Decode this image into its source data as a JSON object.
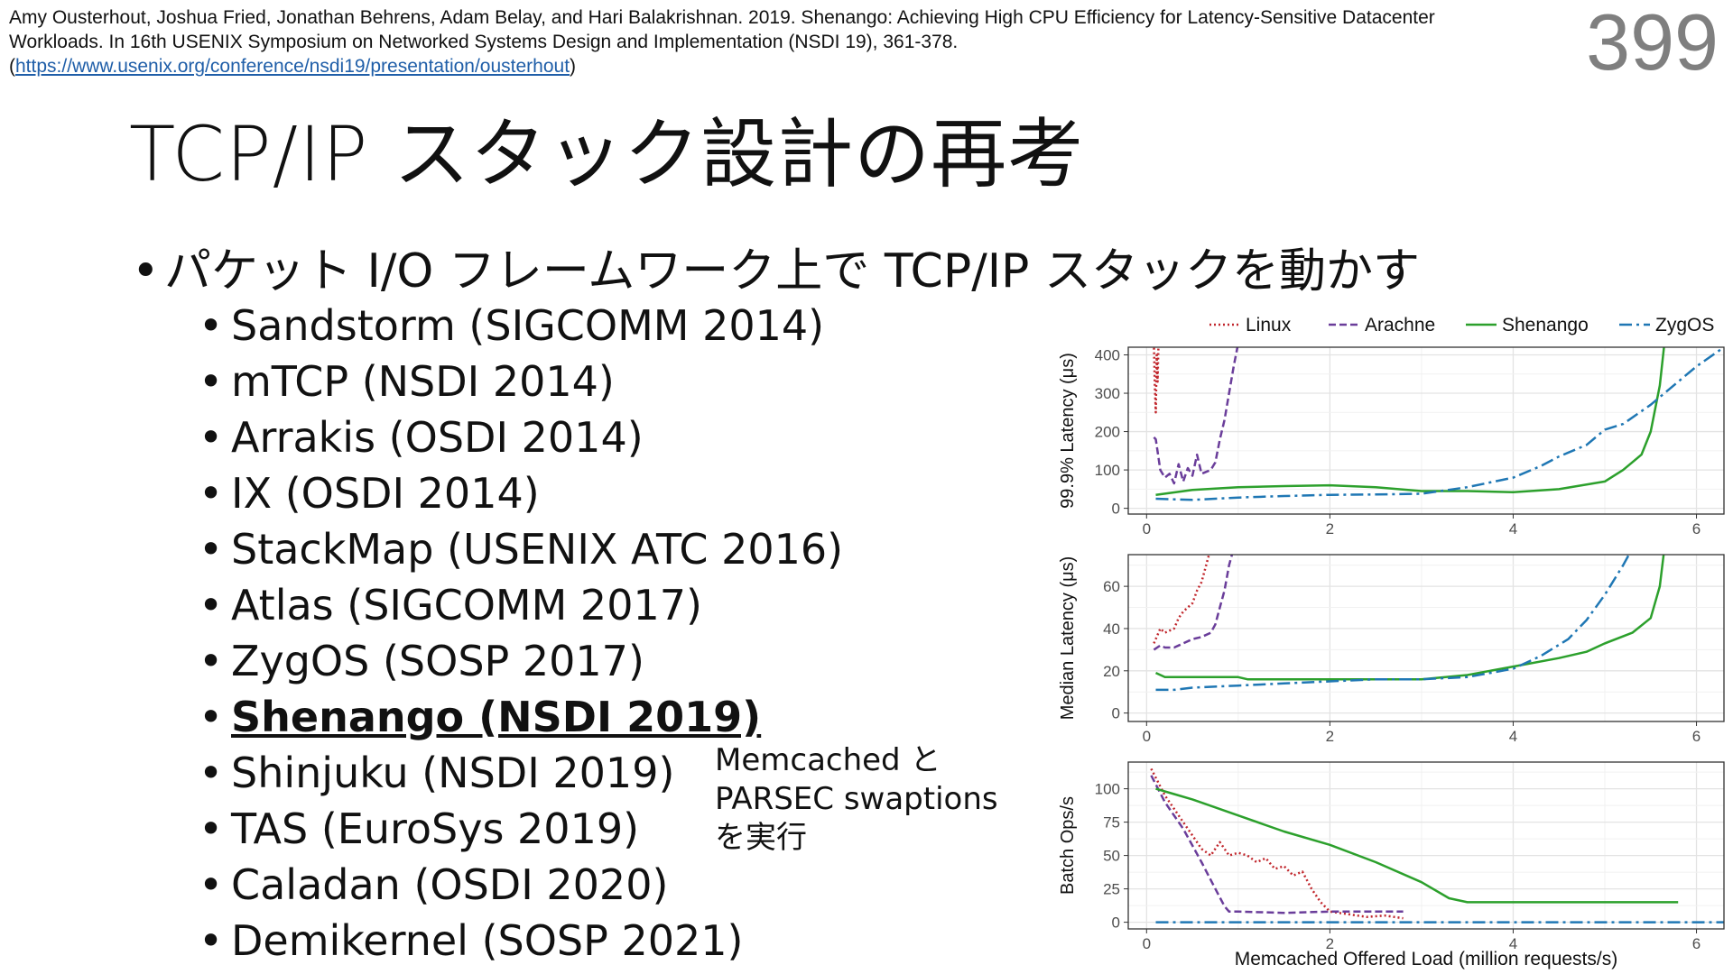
{
  "citation": {
    "text": "Amy Ousterhout, Joshua Fried, Jonathan Behrens, Adam Belay, and Hari Balakrishnan. 2019. Shenango: Achieving High CPU Efficiency for Latency-Sensitive Datacenter Workloads. In 16th USENIX Symposium on Networked Systems Design and Implementation (NSDI 19), 361-378.(",
    "link": "https://www.usenix.org/conference/nsdi19/presentation/ousterhout",
    "close": ")"
  },
  "page_number": "399",
  "title": "TCP/IP スタック設計の再考",
  "main_bullet": "パケット I/O フレームワーク上で TCP/IP スタックを動かす",
  "bullet_symbol": "•",
  "sub_items": [
    {
      "text": "Sandstorm (SIGCOMM 2014)",
      "highlight": false
    },
    {
      "text": "mTCP (NSDI 2014)",
      "highlight": false
    },
    {
      "text": "Arrakis (OSDI 2014)",
      "highlight": false
    },
    {
      "text": "IX (OSDI 2014)",
      "highlight": false
    },
    {
      "text": "StackMap (USENIX ATC 2016)",
      "highlight": false
    },
    {
      "text": "Atlas (SIGCOMM 2017)",
      "highlight": false
    },
    {
      "text": "ZygOS (SOSP 2017)",
      "highlight": false
    },
    {
      "text": "Shenango (NSDI 2019)",
      "highlight": true
    },
    {
      "text": "Shinjuku (NSDI 2019)",
      "highlight": false
    },
    {
      "text": "TAS (EuroSys 2019)",
      "highlight": false
    },
    {
      "text": "Caladan (OSDI 2020)",
      "highlight": false
    },
    {
      "text": "Demikernel (SOSP 2021)",
      "highlight": false
    }
  ],
  "note_lines": [
    "Memcached と",
    "PARSEC swaptions",
    "を実行"
  ],
  "chart_data": {
    "type": "line",
    "xlabel": "Memcached Offered Load (million requests/s)",
    "xlim": [
      -0.2,
      6.3
    ],
    "xticks": [
      0,
      2,
      4,
      6
    ],
    "legend": {
      "position": "top",
      "entries": [
        {
          "name": "Linux",
          "color": "#c1272d",
          "style": "dotted"
        },
        {
          "name": "Arachne",
          "color": "#6a3d9a",
          "style": "dashed"
        },
        {
          "name": "Shenango",
          "color": "#2ca02c",
          "style": "solid"
        },
        {
          "name": "ZygOS",
          "color": "#1f77b4",
          "style": "longdash"
        }
      ]
    },
    "grid": true,
    "panels": [
      {
        "ylabel": "99.9% Latency (μs)",
        "ylim": [
          -15,
          420
        ],
        "yticks": [
          0,
          100,
          200,
          300,
          400
        ],
        "series": [
          {
            "name": "Linux",
            "x": [
              0.08,
              0.09,
              0.1,
              0.11,
              0.12,
              0.13
            ],
            "y": [
              430,
              320,
              250,
              400,
              330,
              430
            ]
          },
          {
            "name": "Arachne",
            "x": [
              0.08,
              0.1,
              0.15,
              0.2,
              0.25,
              0.3,
              0.35,
              0.4,
              0.45,
              0.5,
              0.55,
              0.6,
              0.65,
              0.7,
              0.75,
              0.8,
              0.85,
              0.9,
              0.95,
              1.0
            ],
            "y": [
              185,
              180,
              100,
              80,
              90,
              65,
              115,
              70,
              105,
              85,
              140,
              90,
              95,
              100,
              120,
              180,
              230,
              300,
              370,
              430
            ]
          },
          {
            "name": "Shenango",
            "x": [
              0.1,
              0.5,
              1.0,
              1.5,
              2.0,
              2.5,
              3.0,
              3.5,
              4.0,
              4.5,
              5.0,
              5.2,
              5.4,
              5.5,
              5.6,
              5.65
            ],
            "y": [
              35,
              48,
              55,
              58,
              60,
              55,
              45,
              45,
              42,
              50,
              70,
              100,
              140,
              200,
              320,
              430
            ]
          },
          {
            "name": "ZygOS",
            "x": [
              0.1,
              0.5,
              1.0,
              1.5,
              2.0,
              2.5,
              3.0,
              3.5,
              4.0,
              4.3,
              4.5,
              4.8,
              5.0,
              5.2,
              5.5,
              5.8,
              6.0,
              6.3
            ],
            "y": [
              25,
              22,
              28,
              32,
              35,
              36,
              38,
              55,
              80,
              110,
              135,
              165,
              205,
              220,
              270,
              330,
              370,
              420
            ]
          }
        ]
      },
      {
        "ylabel": "Median Latency (μs)",
        "ylim": [
          -4,
          75
        ],
        "yticks": [
          0,
          20,
          40,
          60
        ],
        "series": [
          {
            "name": "Linux",
            "x": [
              0.08,
              0.15,
              0.2,
              0.3,
              0.35,
              0.4,
              0.45,
              0.5,
              0.55,
              0.6,
              0.65,
              0.7
            ],
            "y": [
              33,
              40,
              38,
              40,
              45,
              48,
              50,
              52,
              58,
              62,
              70,
              78
            ]
          },
          {
            "name": "Arachne",
            "x": [
              0.08,
              0.15,
              0.2,
              0.3,
              0.4,
              0.5,
              0.6,
              0.7,
              0.75,
              0.8,
              0.85,
              0.9,
              0.95
            ],
            "y": [
              30,
              32,
              31,
              31,
              33,
              35,
              36,
              38,
              42,
              50,
              58,
              70,
              78
            ]
          },
          {
            "name": "Shenango",
            "x": [
              0.1,
              0.2,
              1.0,
              1.1,
              2.0,
              3.0,
              3.5,
              4.0,
              4.5,
              4.8,
              5.0,
              5.3,
              5.5,
              5.6,
              5.65
            ],
            "y": [
              19,
              17,
              17,
              16,
              16,
              16,
              18,
              22,
              26,
              29,
              33,
              38,
              45,
              60,
              78
            ]
          },
          {
            "name": "ZygOS",
            "x": [
              0.1,
              0.3,
              0.5,
              1.0,
              1.5,
              2.0,
              2.5,
              3.0,
              3.5,
              4.0,
              4.3,
              4.6,
              4.8,
              5.0,
              5.2,
              5.3
            ],
            "y": [
              11,
              11,
              12,
              13,
              14,
              15,
              16,
              16,
              17,
              21,
              27,
              35,
              44,
              56,
              70,
              78
            ]
          }
        ]
      },
      {
        "ylabel": "Batch Ops/s",
        "ylim": [
          -5,
          120
        ],
        "yticks": [
          0,
          25,
          50,
          75,
          100
        ],
        "series": [
          {
            "name": "Linux",
            "x": [
              0.05,
              0.2,
              0.4,
              0.5,
              0.6,
              0.7,
              0.8,
              0.9,
              1.0,
              1.1,
              1.2,
              1.3,
              1.4,
              1.5,
              1.6,
              1.7,
              1.8,
              1.9,
              2.0,
              2.2,
              2.4,
              2.6,
              2.8
            ],
            "y": [
              115,
              95,
              75,
              65,
              55,
              50,
              60,
              50,
              52,
              50,
              45,
              48,
              40,
              42,
              35,
              38,
              25,
              15,
              8,
              6,
              4,
              5,
              3
            ]
          },
          {
            "name": "Arachne",
            "x": [
              0.05,
              0.2,
              0.4,
              0.6,
              0.75,
              0.85,
              0.9,
              1.0,
              1.5,
              2.0,
              2.5,
              2.8
            ],
            "y": [
              110,
              90,
              70,
              45,
              25,
              12,
              8,
              8,
              7,
              8,
              8,
              8
            ]
          },
          {
            "name": "Shenango",
            "x": [
              0.1,
              0.3,
              0.5,
              1.0,
              1.5,
              2.0,
              2.5,
              3.0,
              3.3,
              3.5,
              4.0,
              4.5,
              5.0,
              5.5,
              5.8
            ],
            "y": [
              100,
              96,
              92,
              80,
              68,
              58,
              45,
              30,
              18,
              15,
              15,
              15,
              15,
              15,
              15
            ]
          },
          {
            "name": "ZygOS",
            "x": [
              0.1,
              6.3
            ],
            "y": [
              0,
              0
            ]
          }
        ]
      }
    ]
  }
}
